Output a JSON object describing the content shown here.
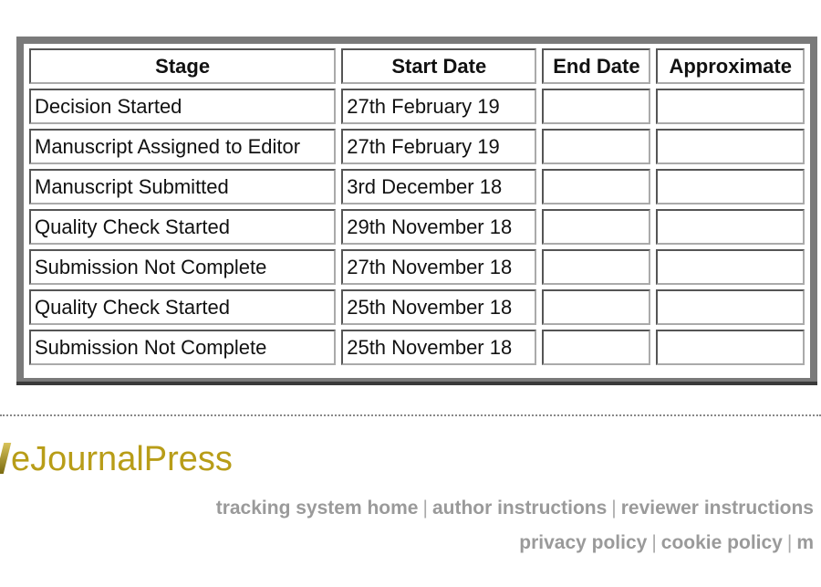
{
  "table": {
    "headers": [
      "Stage",
      "Start Date",
      "End Date",
      "Approximate"
    ],
    "rows": [
      {
        "stage": "Decision Started",
        "start": "27th February 19",
        "end": "",
        "approx": ""
      },
      {
        "stage": "Manuscript Assigned to Editor",
        "start": "27th February 19",
        "end": "",
        "approx": ""
      },
      {
        "stage": "Manuscript Submitted",
        "start": "3rd December 18",
        "end": "",
        "approx": ""
      },
      {
        "stage": "Quality Check Started",
        "start": "29th November 18",
        "end": "",
        "approx": ""
      },
      {
        "stage": "Submission Not Complete",
        "start": "27th November 18",
        "end": "",
        "approx": ""
      },
      {
        "stage": "Quality Check Started",
        "start": "25th November 18",
        "end": "",
        "approx": ""
      },
      {
        "stage": "Submission Not Complete",
        "start": "25th November 18",
        "end": "",
        "approx": ""
      }
    ]
  },
  "footer": {
    "logo": "eJournalPress",
    "separator": "|",
    "links_row1": [
      "tracking system home",
      "author instructions",
      "reviewer instructions"
    ],
    "links_row2": [
      "privacy policy",
      "cookie policy",
      "m"
    ],
    "logo_color": "#b89d18",
    "link_color": "#9a9a9a"
  }
}
